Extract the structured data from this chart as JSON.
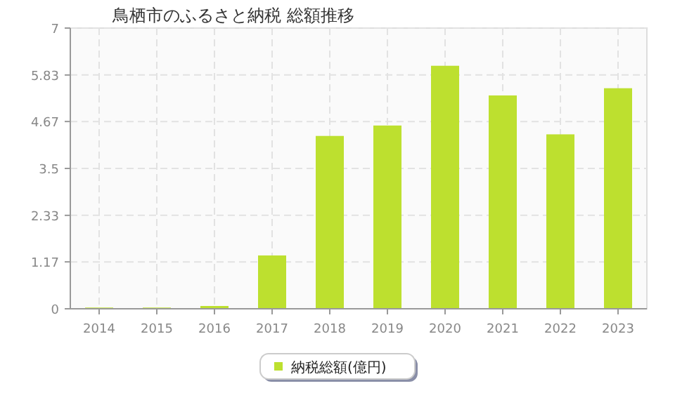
{
  "chart_data": {
    "type": "bar",
    "title": "鳥栖市のふるさと納税  総額推移",
    "categories": [
      "2014",
      "2015",
      "2016",
      "2017",
      "2018",
      "2019",
      "2020",
      "2021",
      "2022",
      "2023"
    ],
    "series": [
      {
        "name": "納税総額(億円)",
        "color": "#bde02f",
        "values": [
          0.03,
          0.03,
          0.07,
          1.33,
          4.31,
          4.57,
          6.06,
          5.32,
          4.35,
          5.5
        ]
      }
    ],
    "ylim": [
      0,
      7
    ],
    "yticks": [
      0,
      1.17,
      2.33,
      3.5,
      4.67,
      5.83,
      7
    ],
    "grid": true,
    "legend": "bottom"
  }
}
